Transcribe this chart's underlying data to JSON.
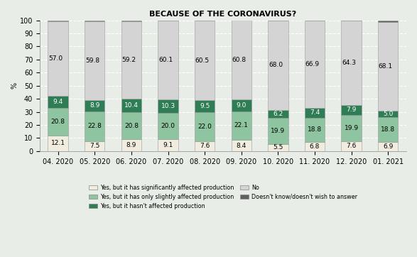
{
  "title": "BECAUSE OF THE CORONAVIRUS?",
  "categories": [
    "04. 2020",
    "05. 2020",
    "06. 2020",
    "07. 2020",
    "08. 2020",
    "09. 2020",
    "10. 2020",
    "11. 2020",
    "12. 2020",
    "01. 2021"
  ],
  "segments": {
    "sig_affected": [
      12.1,
      7.5,
      8.9,
      9.1,
      7.6,
      8.4,
      5.5,
      6.8,
      7.6,
      6.9
    ],
    "slightly_affected": [
      20.8,
      22.8,
      20.8,
      20.0,
      22.0,
      22.1,
      19.9,
      18.8,
      19.9,
      18.8
    ],
    "not_affected": [
      9.4,
      8.9,
      10.4,
      10.3,
      9.5,
      9.0,
      6.2,
      7.4,
      7.9,
      5.0
    ],
    "no": [
      57.0,
      59.8,
      59.2,
      60.1,
      60.5,
      60.8,
      68.0,
      66.9,
      64.3,
      68.1
    ],
    "dk": [
      0.7,
      1.0,
      0.7,
      0.5,
      0.4,
      0.4,
      0.4,
      0.1,
      0.3,
      1.2
    ]
  },
  "colors": {
    "sig_affected": "#f0ede0",
    "slightly_affected": "#8ec4a0",
    "not_affected": "#2e7d55",
    "no": "#d4d4d4",
    "dk": "#606060"
  },
  "legend_labels": [
    "Yes, but it has significantly affected production",
    "Yes, but it has only slightly affected production",
    "Yes, but it hasn't affected production",
    "No",
    "Doesn't know/doesn't wish to answer"
  ],
  "ylabel": "%",
  "ylim": [
    0,
    100
  ],
  "yticks": [
    0,
    10,
    20,
    30,
    40,
    50,
    60,
    70,
    80,
    90,
    100
  ],
  "background_color": "#e8ede8",
  "fontsize_title": 8,
  "fontsize_ticks": 7,
  "fontsize_labels": 6.5
}
